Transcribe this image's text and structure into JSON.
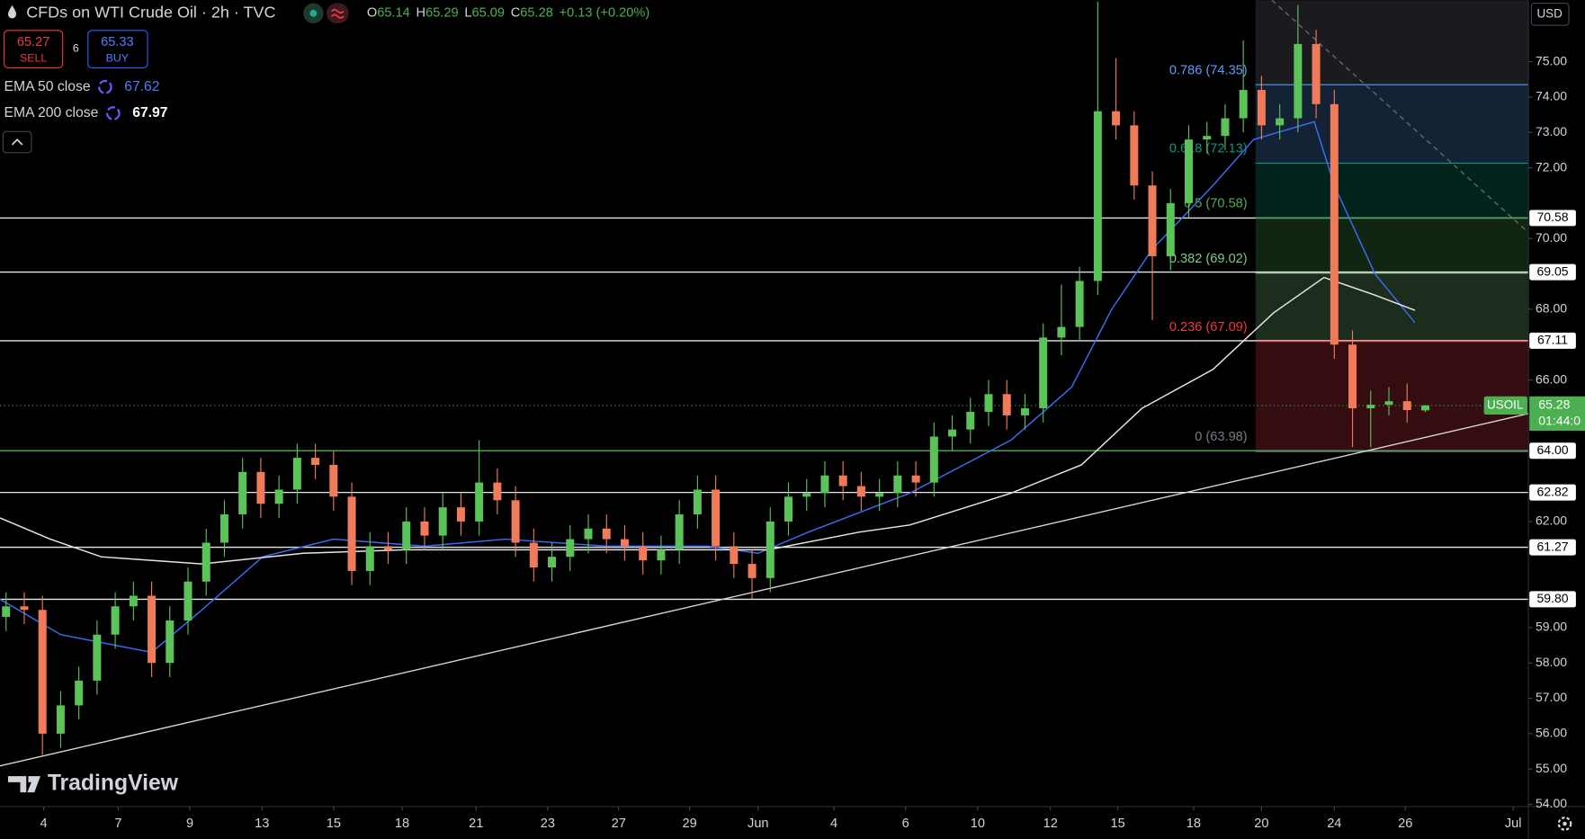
{
  "header": {
    "title": "CFDs on WTI Crude Oil · 2h · TVC",
    "legend": [
      {
        "label": "O",
        "value": "65.14"
      },
      {
        "label": "H",
        "value": "65.29"
      },
      {
        "label": "L",
        "value": "65.09"
      },
      {
        "label": "C",
        "value": "65.28"
      }
    ],
    "change": "+0.13 (+0.20%)"
  },
  "trade": {
    "sell_price": "65.27",
    "sell": "SELL",
    "spread": "6",
    "buy_price": "65.33",
    "buy": "BUY"
  },
  "watermark": "TradingView",
  "chart_data": {
    "type": "candlestick",
    "currency": "USD",
    "up_color": "#5cc25a",
    "down_color": "#ef7b5b",
    "xlim": [
      0,
      252
    ],
    "ylim": [
      53.94,
      76.74
    ],
    "x": [
      1,
      4,
      7,
      10,
      13,
      16,
      19,
      22,
      25,
      28,
      31,
      34,
      37,
      40,
      43,
      46,
      49,
      52,
      55,
      58,
      61,
      64,
      67,
      70,
      73,
      76,
      79,
      82,
      85,
      88,
      91,
      94,
      97,
      100,
      103,
      106,
      109,
      112,
      115,
      118,
      121,
      124,
      127,
      130,
      133,
      136,
      139,
      142,
      145,
      148,
      151,
      154,
      157,
      160,
      163,
      166,
      169,
      172,
      175,
      178,
      181,
      184,
      187,
      190,
      193,
      196,
      199,
      202,
      205,
      208,
      211,
      214,
      217,
      220,
      223,
      226,
      229,
      232,
      235
    ],
    "open": [
      59.3,
      59.6,
      59.5,
      56.0,
      56.8,
      57.5,
      58.8,
      59.6,
      59.9,
      58.0,
      59.2,
      60.3,
      61.4,
      62.2,
      63.4,
      62.5,
      62.9,
      63.8,
      63.6,
      62.7,
      60.6,
      61.3,
      61.2,
      62.0,
      61.6,
      62.4,
      62.0,
      63.1,
      62.6,
      61.4,
      60.7,
      61.0,
      61.5,
      61.8,
      61.5,
      61.3,
      60.9,
      61.2,
      62.2,
      62.9,
      61.3,
      60.8,
      60.4,
      62.0,
      62.7,
      62.8,
      63.3,
      63.0,
      62.7,
      62.8,
      63.3,
      63.1,
      64.4,
      64.6,
      65.1,
      65.6,
      65.0,
      65.2,
      67.2,
      67.5,
      68.8,
      73.6,
      73.2,
      71.5,
      69.5,
      71.0,
      72.8,
      72.9,
      73.4,
      74.2,
      73.2,
      73.4,
      75.5,
      73.8,
      67.0,
      65.2,
      65.3,
      65.4,
      65.14
    ],
    "high": [
      60.0,
      60.0,
      59.9,
      57.2,
      57.9,
      59.2,
      60.0,
      60.3,
      60.3,
      59.6,
      60.7,
      61.8,
      62.6,
      63.8,
      63.8,
      63.3,
      64.2,
      64.2,
      64.0,
      63.1,
      61.7,
      61.7,
      62.4,
      62.4,
      62.8,
      62.8,
      64.3,
      63.5,
      63.0,
      61.8,
      61.4,
      61.9,
      62.2,
      62.2,
      61.9,
      61.7,
      61.6,
      62.6,
      63.3,
      63.3,
      61.7,
      61.2,
      62.4,
      63.1,
      63.2,
      63.7,
      63.7,
      63.4,
      63.2,
      63.7,
      63.7,
      64.8,
      65.0,
      65.5,
      66.0,
      66.0,
      65.6,
      67.6,
      68.7,
      69.2,
      76.7,
      75.1,
      73.6,
      71.9,
      71.4,
      73.2,
      73.3,
      73.8,
      75.6,
      74.6,
      73.8,
      76.6,
      75.9,
      74.2,
      67.4,
      65.7,
      65.8,
      65.9,
      65.29
    ],
    "low": [
      58.9,
      59.1,
      55.4,
      55.6,
      56.4,
      57.1,
      58.4,
      59.2,
      57.6,
      57.6,
      58.8,
      59.9,
      61.0,
      61.8,
      62.1,
      62.1,
      62.5,
      63.2,
      62.3,
      60.2,
      60.2,
      60.8,
      60.8,
      61.2,
      61.2,
      61.6,
      61.6,
      62.2,
      61.0,
      60.3,
      60.3,
      60.6,
      61.1,
      61.1,
      60.9,
      60.5,
      60.5,
      60.8,
      61.8,
      60.9,
      60.4,
      59.8,
      60.0,
      61.6,
      62.3,
      62.4,
      62.6,
      62.3,
      62.3,
      62.4,
      62.7,
      62.7,
      64.0,
      64.2,
      64.7,
      64.6,
      64.6,
      64.8,
      66.7,
      67.1,
      68.4,
      72.8,
      71.1,
      67.7,
      69.1,
      70.6,
      72.4,
      72.5,
      73.0,
      72.8,
      72.8,
      73.0,
      73.4,
      66.6,
      64.1,
      64.1,
      65.0,
      64.8,
      65.09
    ],
    "close": [
      59.6,
      59.5,
      56.0,
      56.8,
      57.5,
      58.8,
      59.6,
      59.9,
      58.0,
      59.2,
      60.3,
      61.4,
      62.2,
      63.4,
      62.5,
      62.9,
      63.8,
      63.6,
      62.7,
      60.6,
      61.3,
      61.2,
      62.0,
      61.6,
      62.4,
      62.0,
      63.1,
      62.6,
      61.4,
      60.7,
      61.0,
      61.5,
      61.8,
      61.5,
      61.3,
      60.9,
      61.2,
      62.2,
      62.9,
      61.3,
      60.8,
      60.4,
      62.0,
      62.7,
      62.8,
      63.3,
      63.0,
      62.7,
      62.8,
      63.3,
      63.1,
      64.4,
      64.6,
      65.1,
      65.6,
      65.0,
      65.2,
      67.2,
      67.5,
      68.8,
      73.6,
      73.2,
      71.5,
      69.5,
      71.0,
      72.8,
      72.9,
      73.4,
      74.2,
      73.2,
      73.4,
      75.5,
      73.8,
      67.0,
      65.2,
      65.3,
      65.4,
      65.15,
      65.28
    ],
    "series": [
      {
        "name": "EMA 50 close",
        "color": "#3b6cf2",
        "legend_value": "67.62",
        "x": [
          0,
          10,
          25,
          33.3,
          43.3,
          55,
          70,
          83.3,
          100,
          116.7,
          125,
          133.3,
          150,
          166.7,
          176.7,
          183.3,
          190,
          200,
          206.7,
          216.7,
          220,
          226.7,
          233.3
        ],
        "values": [
          59.8,
          58.8,
          58.3,
          59.5,
          61.0,
          61.5,
          61.3,
          61.5,
          61.3,
          61.3,
          61.1,
          61.7,
          62.8,
          64.3,
          65.8,
          68.0,
          69.7,
          71.5,
          72.8,
          73.3,
          71.5,
          69.0,
          67.62
        ]
      },
      {
        "name": "EMA 200 close",
        "color": "#e6e6e6",
        "legend_value": "67.97",
        "x": [
          0,
          8.3,
          16.7,
          33.3,
          50,
          66.7,
          83.3,
          100,
          116.7,
          126.7,
          141.7,
          150,
          166.7,
          178.3,
          188.3,
          200,
          210,
          218.3,
          226.7,
          233.3
        ],
        "values": [
          62.1,
          61.5,
          61.0,
          60.8,
          61.1,
          61.2,
          61.2,
          61.2,
          61.2,
          61.2,
          61.7,
          61.9,
          62.8,
          63.6,
          65.2,
          66.3,
          67.9,
          68.9,
          68.4,
          67.97
        ]
      }
    ],
    "trendlines": [
      {
        "color": "#d9d9d9",
        "dashed": false,
        "x": [
          0,
          252
        ],
        "values": [
          55.09,
          65.05
        ]
      },
      {
        "color": "#6a6a6a",
        "dashed": true,
        "x": [
          209.7,
          252
        ],
        "values": [
          76.74,
          70.17
        ]
      }
    ],
    "price_lines": [
      {
        "value": 70.58,
        "color": "#e6e6e6"
      },
      {
        "value": 69.05,
        "color": "#e6e6e6"
      },
      {
        "value": 67.11,
        "color": "#e6e6e6"
      },
      {
        "value": 64.0,
        "label": "64.00",
        "color": "#4caf50"
      },
      {
        "value": 62.82,
        "color": "#e6e6e6"
      },
      {
        "value": 61.27,
        "color": "#e6e6e6"
      },
      {
        "value": 59.8,
        "label": "59.80",
        "color": "#e6e6e6"
      }
    ],
    "fib": {
      "x_start": 207,
      "top_fill": "#1b1b1f",
      "levels": [
        {
          "label": "0.786 (74.35)",
          "value": 74.35,
          "color": "#5b9cf6"
        },
        {
          "label": "0.618 (72.13)",
          "value": 72.13,
          "color": "#089981"
        },
        {
          "label": "0.5 (70.58)",
          "value": 70.58,
          "color": "#4caf50"
        },
        {
          "label": "0.382 (69.02)",
          "value": 69.02,
          "color": "#81c784"
        },
        {
          "label": "0.236 (67.09)",
          "value": 67.09,
          "color": "#f23645"
        },
        {
          "label": "0 (63.98)",
          "value": 63.98,
          "color": "#787b86"
        }
      ]
    },
    "last": {
      "name": "USOIL",
      "value": 65.28,
      "countdown": "01:44:0",
      "color": "#4caf50"
    },
    "yticks": [
      {
        "value": 54,
        "label": "54.00"
      },
      {
        "value": 55,
        "label": "55.00"
      },
      {
        "value": 56,
        "label": "56.00"
      },
      {
        "value": 57,
        "label": "57.00"
      },
      {
        "value": 58,
        "label": "58.00"
      },
      {
        "value": 59,
        "label": "59.00"
      },
      {
        "value": 62,
        "label": "62.00"
      },
      {
        "value": 66,
        "label": "66.00"
      },
      {
        "value": 68,
        "label": "68.00"
      },
      {
        "value": 70,
        "label": "70.00"
      },
      {
        "value": 72,
        "label": "72.00"
      },
      {
        "value": 73,
        "label": "73.00"
      },
      {
        "value": 74,
        "label": "74.00"
      },
      {
        "value": 75,
        "label": "75.00"
      }
    ],
    "xticks": [
      {
        "value": 7.2,
        "label": "4"
      },
      {
        "value": 19.5,
        "label": "7"
      },
      {
        "value": 31.3,
        "label": "9"
      },
      {
        "value": 43.2,
        "label": "13"
      },
      {
        "value": 55,
        "label": "15"
      },
      {
        "value": 66.3,
        "label": "18"
      },
      {
        "value": 78.5,
        "label": "21"
      },
      {
        "value": 90.3,
        "label": "23"
      },
      {
        "value": 102,
        "label": "27"
      },
      {
        "value": 113.7,
        "label": "29"
      },
      {
        "value": 125,
        "label": "Jun"
      },
      {
        "value": 137.5,
        "label": "4"
      },
      {
        "value": 149.3,
        "label": "6"
      },
      {
        "value": 161.2,
        "label": "10"
      },
      {
        "value": 173.2,
        "label": "12"
      },
      {
        "value": 184.3,
        "label": "15"
      },
      {
        "value": 196.8,
        "label": "18"
      },
      {
        "value": 208,
        "label": "20"
      },
      {
        "value": 220,
        "label": "24"
      },
      {
        "value": 231.7,
        "label": "26"
      },
      {
        "value": 249.5,
        "label": "Jul"
      }
    ]
  }
}
